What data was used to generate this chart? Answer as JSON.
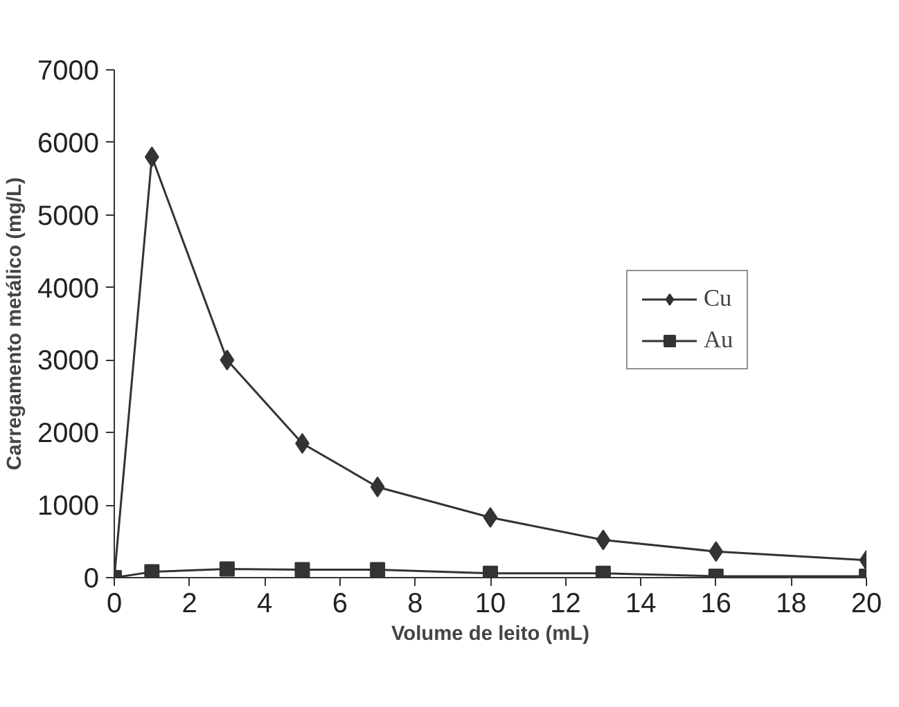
{
  "chart_data": {
    "type": "line",
    "xlabel": "Volume de leito (mL)",
    "ylabel": "Carregamento metálico (mg/L)",
    "x": [
      0,
      1,
      3,
      5,
      7,
      10,
      13,
      16,
      20
    ],
    "series": [
      {
        "name": "Cu",
        "color": "#333333",
        "marker": "diamond",
        "values": [
          0,
          5800,
          3000,
          1850,
          1250,
          830,
          520,
          360,
          240
        ]
      },
      {
        "name": "Au",
        "color": "#333333",
        "marker": "square",
        "values": [
          0,
          80,
          120,
          110,
          110,
          60,
          60,
          20,
          20
        ]
      }
    ],
    "xlim": [
      0,
      20
    ],
    "xticks": [
      0,
      2,
      4,
      6,
      8,
      10,
      12,
      14,
      16,
      18,
      20
    ],
    "ylim": [
      0,
      7000
    ],
    "yticks": [
      0,
      1000,
      2000,
      3000,
      4000,
      5000,
      6000,
      7000
    ],
    "grid": false,
    "legend": "right"
  }
}
